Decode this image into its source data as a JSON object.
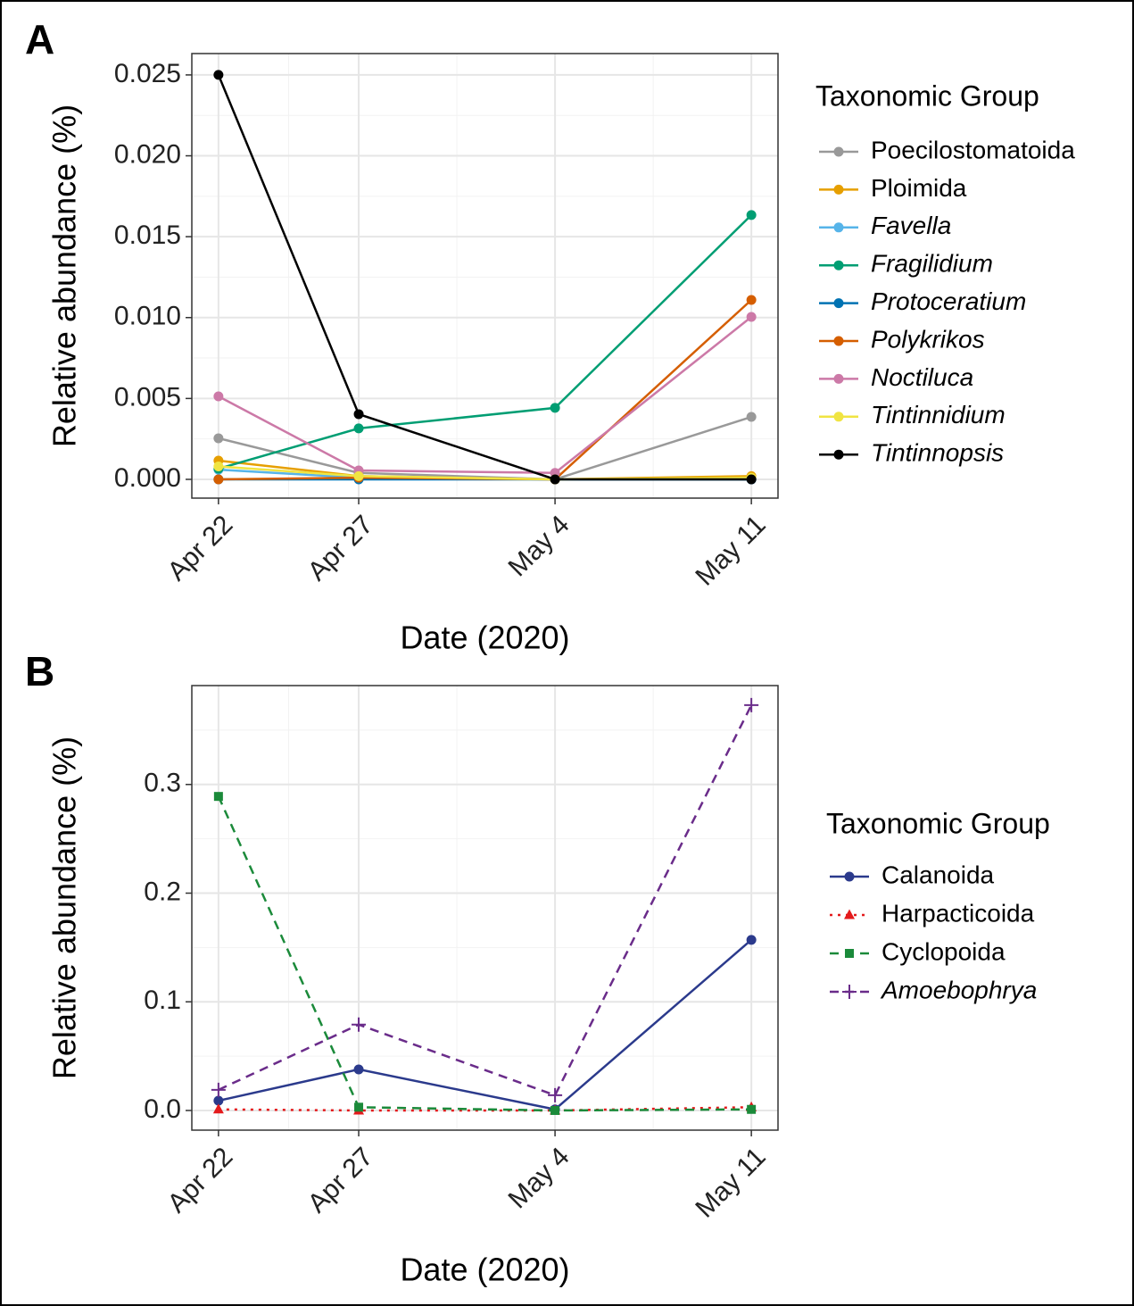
{
  "chart_data": [
    {
      "type": "line",
      "panel_label": "A",
      "y_label": "Relative abundance (%)",
      "x_label": "Date (2020)",
      "legend_title": "Taxonomic Group",
      "grid": true,
      "x": [
        "Apr 22",
        "Apr 27",
        "May 4",
        "May 11"
      ],
      "ylim": [
        -0.00116,
        0.02632
      ],
      "yticks": [
        {
          "value": 0,
          "label": "0.000"
        },
        {
          "value": 0.005,
          "label": "0.005"
        },
        {
          "value": 0.01,
          "label": "0.010"
        },
        {
          "value": 0.015,
          "label": "0.015"
        },
        {
          "value": 0.02,
          "label": "0.020"
        },
        {
          "value": 0.025,
          "label": "0.025"
        }
      ],
      "series": [
        {
          "name": "Poecilostomatoida",
          "color": "#999999",
          "italic": false,
          "linetype": "solid",
          "marker": "circle",
          "values": [
            0.00254,
            0.0004,
            0,
            0.00386
          ]
        },
        {
          "name": "Ploimida",
          "color": "#E69F00",
          "italic": false,
          "linetype": "solid",
          "marker": "circle",
          "values": [
            0.00116,
            0.0002,
            0,
            0.0002
          ]
        },
        {
          "name": "Favella",
          "color": "#56B4E9",
          "italic": true,
          "linetype": "solid",
          "marker": "circle",
          "values": [
            0.0006,
            0.0001,
            0,
            0
          ]
        },
        {
          "name": "Fragilidium",
          "color": "#009E73",
          "italic": true,
          "linetype": "solid",
          "marker": "circle",
          "values": [
            0.00066,
            0.00315,
            0.00442,
            0.01634
          ]
        },
        {
          "name": "Protoceratium",
          "color": "#0072B2",
          "italic": true,
          "linetype": "solid",
          "marker": "circle",
          "values": [
            0,
            0,
            0,
            0
          ]
        },
        {
          "name": "Polykrikos",
          "color": "#D55E00",
          "italic": true,
          "linetype": "solid",
          "marker": "circle",
          "values": [
            0,
            0.0001,
            0,
            0.01109
          ]
        },
        {
          "name": "Noctiluca",
          "color": "#CC79A7",
          "italic": true,
          "linetype": "solid",
          "marker": "circle",
          "values": [
            0.00513,
            0.00055,
            0.0004,
            0.01004
          ]
        },
        {
          "name": "Tintinnidium",
          "color": "#F0E442",
          "italic": true,
          "linetype": "solid",
          "marker": "circle",
          "values": [
            0.0008,
            0.0002,
            0,
            0.0001
          ]
        },
        {
          "name": "Tintinnopsis",
          "color": "#000000",
          "italic": true,
          "linetype": "solid",
          "marker": "circle",
          "values": [
            0.025,
            0.00403,
            0,
            0
          ]
        }
      ]
    },
    {
      "type": "line",
      "panel_label": "B",
      "y_label": "Relative abundance (%)",
      "x_label": "Date (2020)",
      "legend_title": "Taxonomic Group",
      "grid": true,
      "x": [
        "Apr 22",
        "Apr 27",
        "May 4",
        "May 11"
      ],
      "ylim": [
        -0.0181,
        0.391
      ],
      "yticks": [
        {
          "value": 0,
          "label": "0.0"
        },
        {
          "value": 0.1,
          "label": "0.1"
        },
        {
          "value": 0.2,
          "label": "0.2"
        },
        {
          "value": 0.3,
          "label": "0.3"
        }
      ],
      "series": [
        {
          "name": "Calanoida",
          "color": "#2B3A8C",
          "italic": false,
          "linetype": "solid",
          "marker": "circle",
          "values": [
            0.009,
            0.0378,
            0.001,
            0.157
          ]
        },
        {
          "name": "Harpacticoida",
          "color": "#E41A1C",
          "italic": false,
          "linetype": "dotted",
          "marker": "triangle",
          "values": [
            0.001,
            0,
            0,
            0.003
          ]
        },
        {
          "name": "Cyclopoida",
          "color": "#1B8A3A",
          "italic": false,
          "linetype": "dashed",
          "marker": "square",
          "values": [
            0.289,
            0.003,
            0,
            0.001
          ]
        },
        {
          "name": "Amoebophrya",
          "color": "#6A2C8A",
          "italic": true,
          "linetype": "dashed",
          "marker": "plus",
          "values": [
            0.019,
            0.079,
            0.014,
            0.373
          ]
        }
      ]
    }
  ]
}
